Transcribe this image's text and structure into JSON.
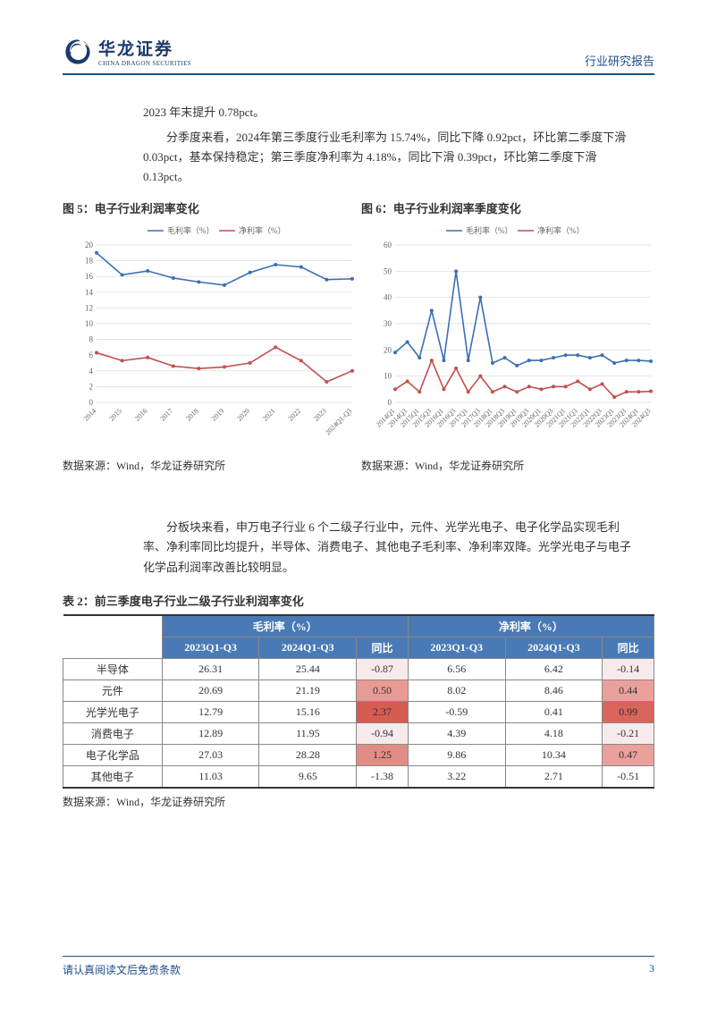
{
  "header": {
    "logo_main": "华龙证券",
    "logo_sub": "CHINA DRAGON SECURITIES",
    "doc_type": "行业研究报告"
  },
  "text": {
    "line1": "2023 年末提升 0.78pct。",
    "para1": "分季度来看，2024年第三季度行业毛利率为 15.74%，同比下降 0.92pct，环比第二季度下滑 0.03pct，基本保持稳定；第三季度净利率为 4.18%，同比下滑 0.39pct，环比第二季度下滑 0.13pct。",
    "para2": "分板块来看，申万电子行业 6 个二级子行业中，元件、光学光电子、电子化学品实现毛利率、净利率同比均提升，半导体、消费电子、其他电子毛利率、净利率双降。光学光电子与电子化学品利润率改善比较明显。"
  },
  "chart5": {
    "title": "图 5：电子行业利润率变化",
    "source": "数据来源：Wind，华龙证券研究所",
    "legend_gross": "毛利率（%）",
    "legend_net": "净利率（%）",
    "gross_color": "#3b6fb5",
    "net_color": "#c0504d",
    "grid_color": "#d9d9d9",
    "x_labels": [
      "2014",
      "2015",
      "2016",
      "2017",
      "2018",
      "2019",
      "2020",
      "2021",
      "2022",
      "2023",
      "2024Q1-Q3"
    ],
    "y_min": 0,
    "y_max": 20,
    "y_step": 2,
    "gross": [
      19.0,
      16.2,
      16.7,
      15.8,
      15.3,
      14.9,
      16.5,
      17.5,
      17.2,
      15.6,
      15.7
    ],
    "net": [
      6.3,
      5.3,
      5.7,
      4.6,
      4.3,
      4.5,
      5.0,
      7.0,
      5.3,
      2.6,
      4.0
    ]
  },
  "chart6": {
    "title": "图 6：电子行业利润率季度变化",
    "source": "数据来源：Wind，华龙证券研究所",
    "legend_gross": "毛利率（%）",
    "legend_net": "净利率（%）",
    "gross_color": "#3b6fb5",
    "net_color": "#c0504d",
    "grid_color": "#d9d9d9",
    "x_labels": [
      "2014Q1",
      "2014Q3",
      "2015Q1",
      "2015Q3",
      "2016Q1",
      "2016Q3",
      "2017Q1",
      "2017Q3",
      "2018Q1",
      "2018Q3",
      "2019Q1",
      "2019Q3",
      "2020Q1",
      "2020Q3",
      "2021Q1",
      "2021Q3",
      "2022Q1",
      "2022Q3",
      "2023Q1",
      "2023Q3",
      "2024Q1",
      "2024Q3"
    ],
    "y_min": 0,
    "y_max": 60,
    "y_step": 10,
    "gross": [
      19,
      23,
      17,
      35,
      16,
      50,
      16,
      40,
      15,
      17,
      14,
      16,
      16,
      17,
      18,
      18,
      17,
      18,
      15,
      16,
      16,
      15.7
    ],
    "net": [
      5,
      8,
      4,
      16,
      5,
      13,
      4,
      10,
      4,
      6,
      4,
      6,
      5,
      6,
      6,
      8,
      5,
      7,
      2,
      4,
      4,
      4.2
    ]
  },
  "table2": {
    "title": "表 2：前三季度电子行业二级子行业利润率变化",
    "source": "数据来源：Wind，华龙证券研究所",
    "header_group_gross": "毛利率（%）",
    "header_group_net": "净利率（%）",
    "sub_headers": [
      "2023Q1-Q3",
      "2024Q1-Q3",
      "同比",
      "2023Q1-Q3",
      "2024Q1-Q3",
      "同比"
    ],
    "row_labels": [
      "半导体",
      "元件",
      "光学光电子",
      "消费电子",
      "电子化学品",
      "其他电子"
    ],
    "rows": [
      {
        "g23": "26.31",
        "g24": "25.44",
        "gd": "-0.87",
        "n23": "6.56",
        "n24": "6.42",
        "nd": "-0.14",
        "gd_bg": "#f7eaea",
        "nd_bg": "#f7eaea"
      },
      {
        "g23": "20.69",
        "g24": "21.19",
        "gd": "0.50",
        "n23": "8.02",
        "n24": "8.46",
        "nd": "0.44",
        "gd_bg": "#e99a94",
        "nd_bg": "#eaa19b"
      },
      {
        "g23": "12.79",
        "g24": "15.16",
        "gd": "2.37",
        "n23": "-0.59",
        "n24": "0.41",
        "nd": "0.99",
        "gd_bg": "#d65b51",
        "nd_bg": "#d9655c"
      },
      {
        "g23": "12.89",
        "g24": "11.95",
        "gd": "-0.94",
        "n23": "4.39",
        "n24": "4.18",
        "nd": "-0.21",
        "gd_bg": "#f7eaea",
        "nd_bg": "#f7eaea"
      },
      {
        "g23": "27.03",
        "g24": "28.28",
        "gd": "1.25",
        "n23": "9.86",
        "n24": "10.34",
        "nd": "0.47",
        "gd_bg": "#e18d86",
        "nd_bg": "#eaa19b"
      },
      {
        "g23": "11.03",
        "g24": "9.65",
        "gd": "-1.38",
        "n23": "3.22",
        "n24": "2.71",
        "nd": "-0.51",
        "gd_bg": "#ffffff",
        "nd_bg": "#ffffff"
      }
    ]
  },
  "footer": {
    "left": "请认真阅读文后免责条款",
    "page": "3"
  }
}
